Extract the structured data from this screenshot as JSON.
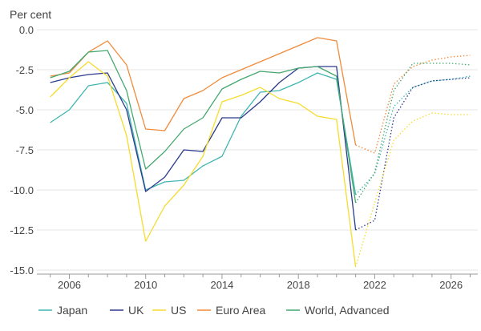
{
  "chart_data": {
    "type": "line",
    "unit_label": "Per cent",
    "ylim": [
      -15,
      0
    ],
    "yticks": [
      0,
      -2.5,
      -5,
      -7.5,
      -10,
      -12.5,
      -15
    ],
    "ytick_labels": [
      "0.0",
      "-2.5",
      "-5.0",
      "-7.5",
      "-10.0",
      "-12.5",
      "-15.0"
    ],
    "xlim": [
      2004.3,
      2027.4
    ],
    "xticks": [
      2006,
      2010,
      2014,
      2018,
      2022,
      2026
    ],
    "xtick_labels": [
      "2006",
      "2010",
      "2014",
      "2018",
      "2022",
      "2026"
    ],
    "forecast_from": 2021,
    "grid": "horizontal",
    "legend_position": "bottom",
    "x": [
      2005,
      2006,
      2007,
      2008,
      2009,
      2010,
      2011,
      2012,
      2013,
      2014,
      2015,
      2016,
      2017,
      2018,
      2019,
      2020,
      2021,
      2022,
      2023,
      2024,
      2025,
      2026,
      2027
    ],
    "series": [
      {
        "name": "Japan",
        "color": "#3fb6b0",
        "values": [
          -5.8,
          -5.0,
          -3.5,
          -3.3,
          -4.6,
          -10.0,
          -9.5,
          -9.4,
          -8.5,
          -7.9,
          -5.4,
          -3.9,
          -3.8,
          -3.3,
          -2.7,
          -3.1,
          -10.3,
          -9.0,
          -4.8,
          -3.6,
          -3.2,
          -3.1,
          -2.9
        ]
      },
      {
        "name": "UK",
        "color": "#2b3a8c",
        "values": [
          -3.3,
          -3.0,
          -2.8,
          -2.7,
          -5.0,
          -10.1,
          -9.2,
          -7.5,
          -7.6,
          -5.5,
          -5.5,
          -4.5,
          -3.3,
          -2.4,
          -2.3,
          -2.3,
          -12.5,
          -11.9,
          -5.5,
          -3.6,
          -3.2,
          -3.1,
          -3.0
        ]
      },
      {
        "name": "US",
        "color": "#f5dc2e",
        "values": [
          -4.2,
          -3.0,
          -2.0,
          -2.9,
          -6.6,
          -13.2,
          -11.0,
          -9.7,
          -7.9,
          -4.5,
          -4.1,
          -3.6,
          -4.3,
          -4.6,
          -5.4,
          -5.6,
          -14.8,
          -10.8,
          -6.9,
          -5.7,
          -5.2,
          -5.3,
          -5.3
        ]
      },
      {
        "name": "Euro Area",
        "color": "#f08b3a",
        "values": [
          -2.9,
          -2.7,
          -1.4,
          -0.7,
          -2.2,
          -6.2,
          -6.3,
          -4.3,
          -3.8,
          -3.0,
          -2.5,
          -2.0,
          -1.5,
          -1.0,
          -0.5,
          -0.7,
          -7.2,
          -7.7,
          -3.4,
          -2.3,
          -1.9,
          -1.7,
          -1.6
        ]
      },
      {
        "name": "World, Advanced",
        "color": "#45a86f",
        "values": [
          -3.0,
          -2.6,
          -1.4,
          -1.3,
          -3.8,
          -8.7,
          -7.6,
          -6.2,
          -5.5,
          -3.7,
          -3.1,
          -2.6,
          -2.7,
          -2.4,
          -2.3,
          -2.9,
          -10.8,
          -8.9,
          -3.8,
          -2.1,
          -2.1,
          -2.1,
          -2.2
        ]
      }
    ]
  }
}
